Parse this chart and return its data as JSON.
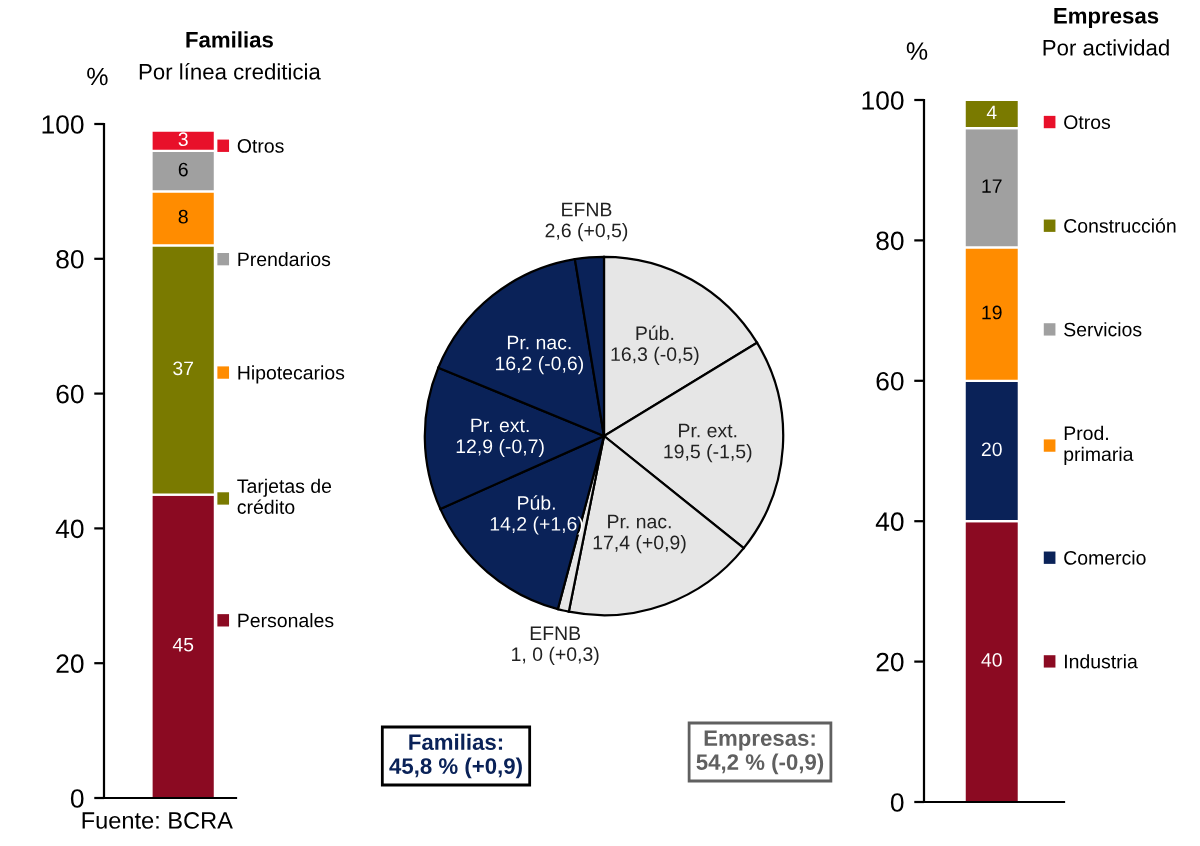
{
  "chart_data": [
    {
      "type": "bar",
      "title": "Familias",
      "subtitle": "Por línea crediticia",
      "ylabel": "%",
      "stacked": true,
      "categories": [
        null
      ],
      "ylim": [
        0,
        100
      ],
      "yticks": [
        0,
        20,
        40,
        60,
        80,
        100
      ],
      "data_labels": true,
      "legend": "right",
      "grid": false,
      "series": [
        {
          "name": "Personales",
          "color": "#8b0a22",
          "values": [
            45
          ]
        },
        {
          "name": "Tarjetas de\ncrédito",
          "color": "#7a7a00",
          "values": [
            37
          ]
        },
        {
          "name": "Hipotecarios",
          "color": "#ff8c00",
          "values": [
            8
          ]
        },
        {
          "name": "Prendarios",
          "color": "#a0a0a0",
          "values": [
            6
          ]
        },
        {
          "name": "Otros",
          "color": "#e8102a",
          "values": [
            3
          ]
        }
      ],
      "annotations": [
        "Fuente: BCRA"
      ]
    },
    {
      "type": "pie",
      "categories": [
        "Púb.",
        "Pr. ext.",
        "Pr. nac.",
        "EFNB",
        "Púb.",
        "Pr. ext.",
        "Pr. nac.",
        "EFNB"
      ],
      "values": [
        16.3,
        19.5,
        17.4,
        1.0,
        14.2,
        12.9,
        16.2,
        2.6
      ],
      "value_labels": [
        "16,3 (-0,5)",
        "19,5 (-1,5)",
        "17,4 (+0,9)",
        "1, 0 (+0,3)",
        "14,2 (+1,6)",
        "12,9 (-0,7)",
        "16,2 (-0,6)",
        "2,6 (+0,5)"
      ],
      "colors": [
        "#e6e6e6",
        "#e6e6e6",
        "#e6e6e6",
        "#e6e6e6",
        "#0a2258",
        "#0a2258",
        "#0a2258",
        "#0a2258"
      ],
      "annotations": [
        "Familias:\n45,8 % (+0,9)",
        "Empresas:\n54,2 % (-0,9)"
      ]
    },
    {
      "type": "bar",
      "title": "Empresas",
      "subtitle": "Por actividad",
      "ylabel": "%",
      "stacked": true,
      "categories": [
        null
      ],
      "ylim": [
        0,
        100
      ],
      "yticks": [
        0,
        20,
        40,
        60,
        80,
        100
      ],
      "data_labels": true,
      "legend": "right",
      "grid": false,
      "series": [
        {
          "name": "Industria",
          "color": "#8b0a22",
          "values": [
            40
          ]
        },
        {
          "name": "Comercio",
          "color": "#0a2258",
          "values": [
            20
          ]
        },
        {
          "name": "Prod.\nprimaria",
          "color": "#ff8c00",
          "values": [
            19
          ]
        },
        {
          "name": "Servicios",
          "color": "#a0a0a0",
          "values": [
            17
          ]
        },
        {
          "name": "Construcción",
          "color": "#7a7a00",
          "values": [
            4
          ]
        },
        {
          "name": "Otros",
          "color": "#e8102a",
          "values": [
            null
          ]
        }
      ]
    }
  ]
}
